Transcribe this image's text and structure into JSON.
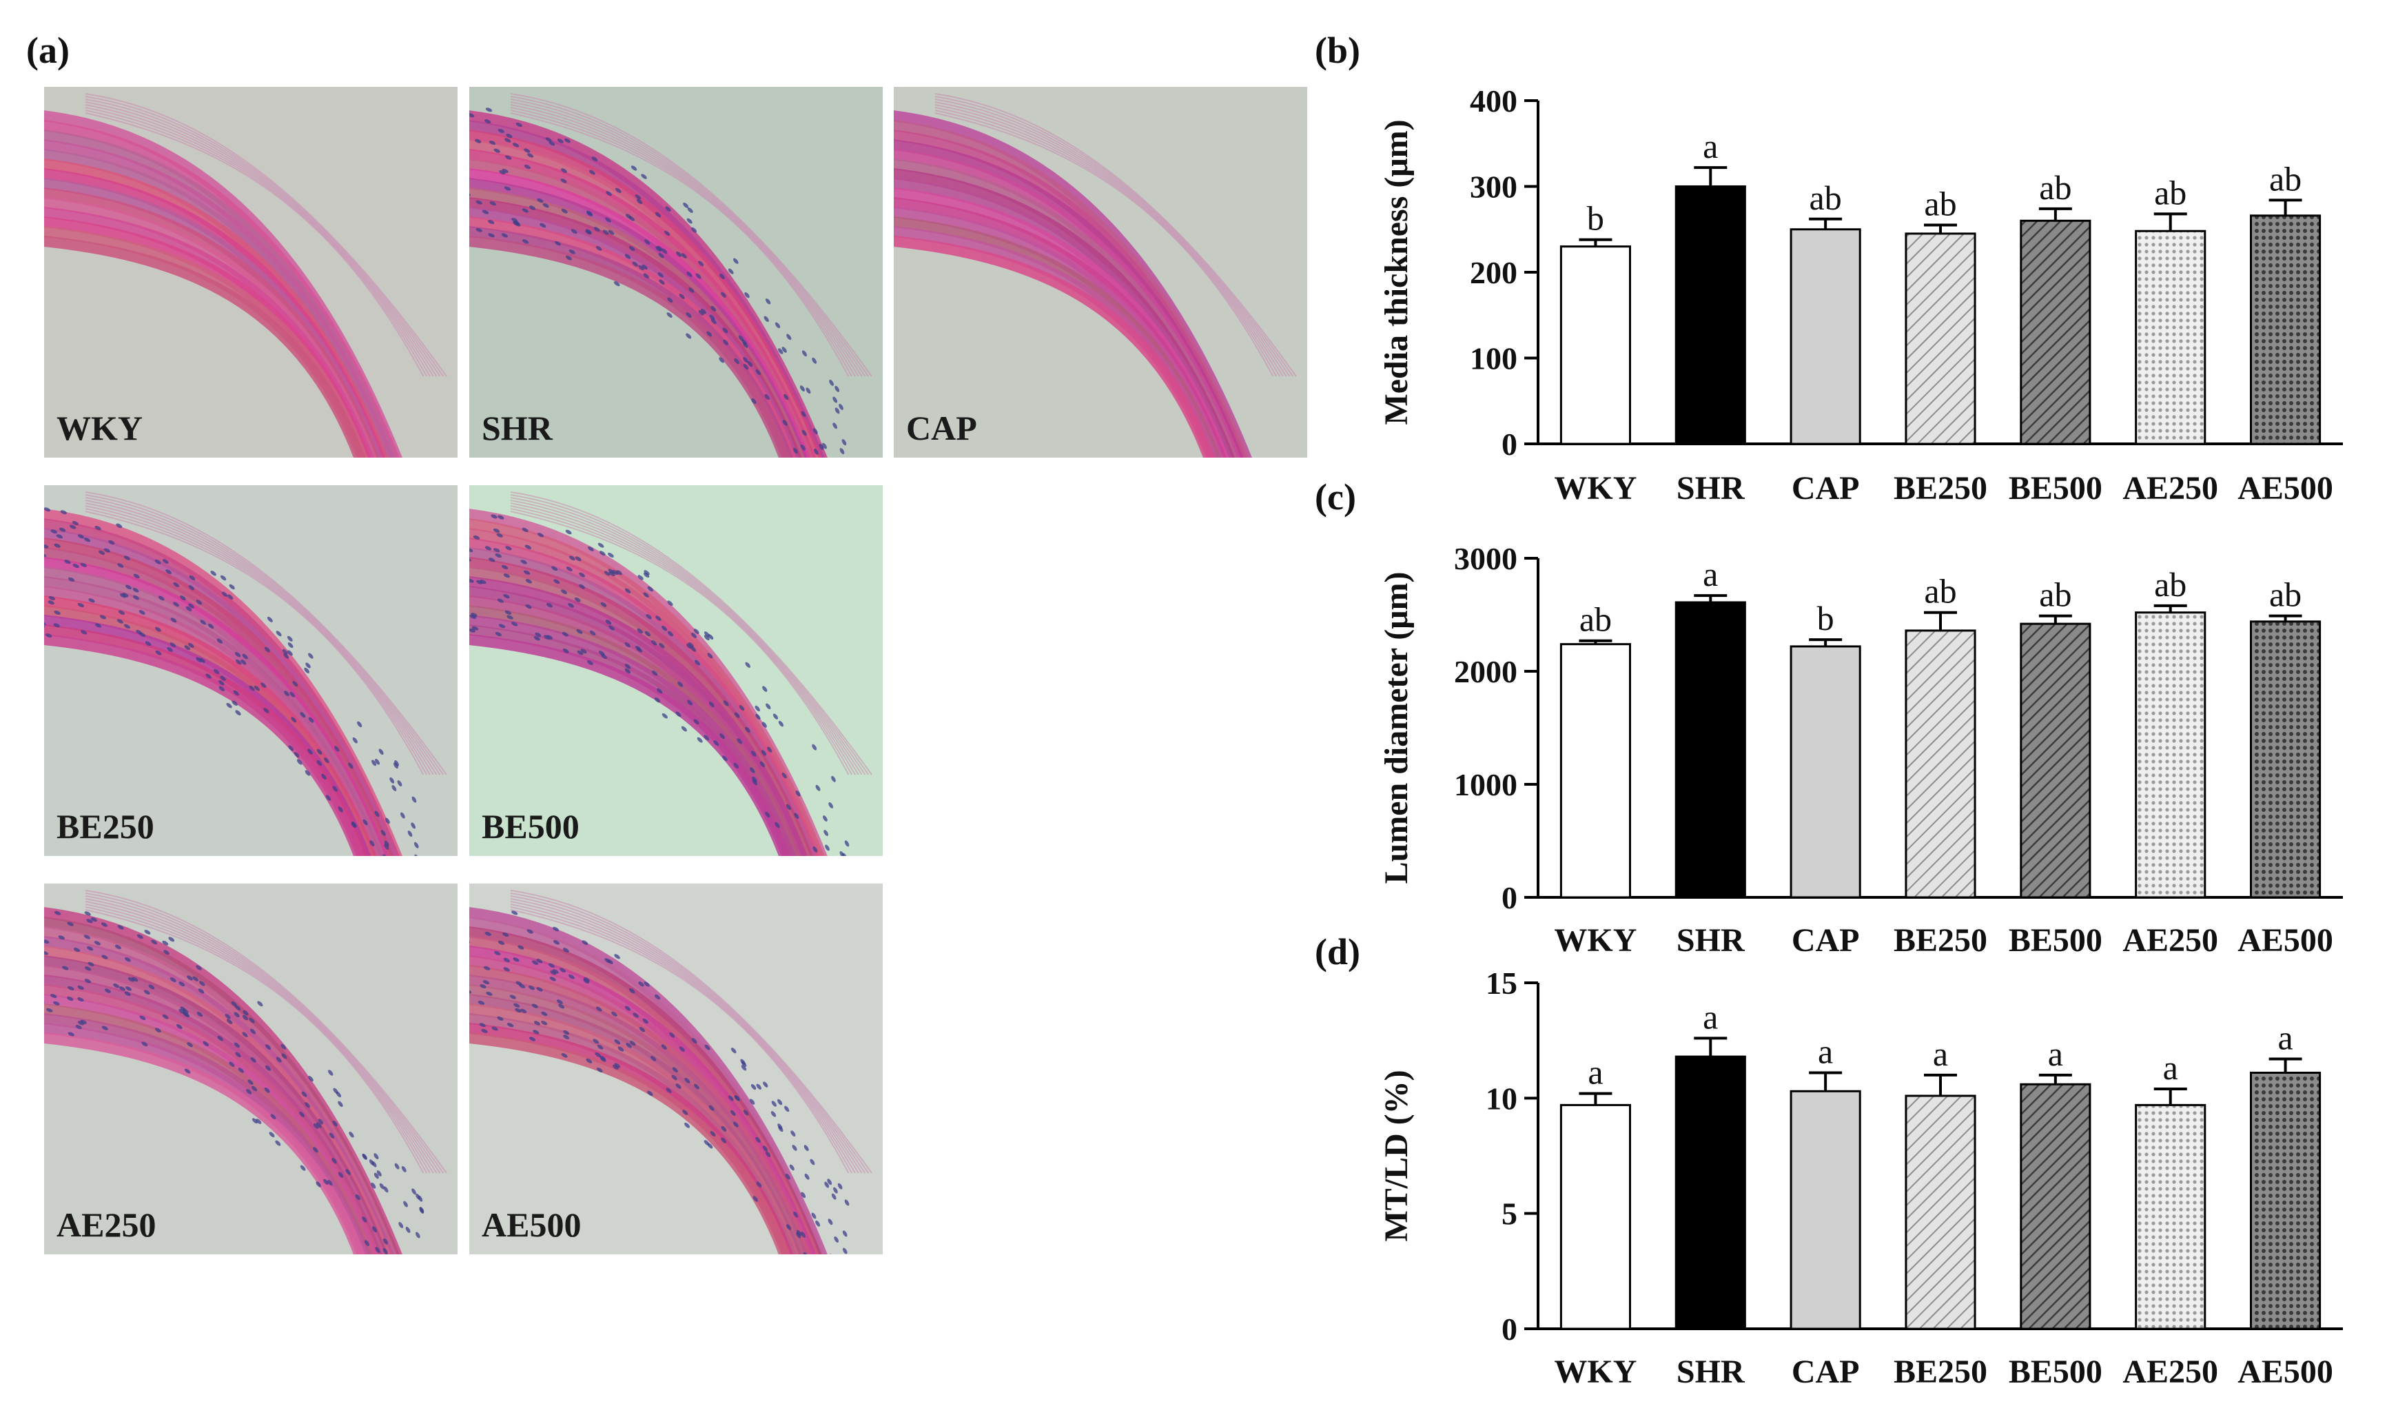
{
  "figure": {
    "panel_labels": [
      "(a)",
      "(b)",
      "(c)",
      "(d)"
    ],
    "micrographs": [
      {
        "label": "WKY",
        "tint": "#c9c9c4",
        "blue_nuclei": false
      },
      {
        "label": "SHR",
        "tint": "#bcc9bf",
        "blue_nuclei": true
      },
      {
        "label": "CAP",
        "tint": "#c6cbc4",
        "blue_nuclei": false
      },
      {
        "label": "BE250",
        "tint": "#c8cfc8",
        "blue_nuclei": true
      },
      {
        "label": "BE500",
        "tint": "#c9e2cd",
        "blue_nuclei": true
      },
      {
        "label": "AE250",
        "tint": "#cbcfc9",
        "blue_nuclei": true
      },
      {
        "label": "AE500",
        "tint": "#cfd4cf",
        "blue_nuclei": true
      }
    ]
  },
  "chart_data": [
    {
      "type": "bar",
      "panel": "(b)",
      "title": "",
      "xlabel": "",
      "ylabel": "Media thickness (μm)",
      "categories": [
        "WKY",
        "SHR",
        "CAP",
        "BE250",
        "BE500",
        "AE250",
        "AE500"
      ],
      "values": [
        230,
        300,
        250,
        245,
        260,
        248,
        266
      ],
      "errors": [
        8,
        22,
        12,
        10,
        14,
        20,
        18
      ],
      "significance": [
        "b",
        "a",
        "ab",
        "ab",
        "ab",
        "ab",
        "ab"
      ],
      "ylim": [
        0,
        400
      ],
      "yticks": [
        0,
        100,
        200,
        300,
        400
      ],
      "grid": false
    },
    {
      "type": "bar",
      "panel": "(c)",
      "title": "",
      "xlabel": "",
      "ylabel": "Lumen diameter (μm)",
      "categories": [
        "WKY",
        "SHR",
        "CAP",
        "BE250",
        "BE500",
        "AE250",
        "AE500"
      ],
      "values": [
        2240,
        2610,
        2220,
        2360,
        2420,
        2520,
        2440
      ],
      "errors": [
        30,
        60,
        60,
        160,
        70,
        60,
        50
      ],
      "significance": [
        "ab",
        "a",
        "b",
        "ab",
        "ab",
        "ab",
        "ab"
      ],
      "ylim": [
        0,
        3000
      ],
      "yticks": [
        0,
        1000,
        2000,
        3000
      ],
      "grid": false
    },
    {
      "type": "bar",
      "panel": "(d)",
      "title": "",
      "xlabel": "",
      "ylabel": "MT/LD (%)",
      "categories": [
        "WKY",
        "SHR",
        "CAP",
        "BE250",
        "BE500",
        "AE250",
        "AE500"
      ],
      "values": [
        9.7,
        11.8,
        10.3,
        10.1,
        10.6,
        9.7,
        11.1
      ],
      "errors": [
        0.5,
        0.8,
        0.8,
        0.9,
        0.4,
        0.7,
        0.6
      ],
      "significance": [
        "a",
        "a",
        "a",
        "a",
        "a",
        "a",
        "a"
      ],
      "ylim": [
        0,
        15
      ],
      "yticks": [
        0,
        5,
        10,
        15
      ],
      "grid": false
    }
  ],
  "bar_styles": [
    {
      "fill": "#ffffff",
      "pattern": "none"
    },
    {
      "fill": "#000000",
      "pattern": "none"
    },
    {
      "fill": "#d0d0d0",
      "pattern": "none"
    },
    {
      "fill": "#dcdcdc",
      "pattern": "hatch-light"
    },
    {
      "fill": "#777777",
      "pattern": "hatch-dark"
    },
    {
      "fill": "#e4e4e4",
      "pattern": "dots-light"
    },
    {
      "fill": "#6e6e6e",
      "pattern": "dots-dark"
    }
  ]
}
